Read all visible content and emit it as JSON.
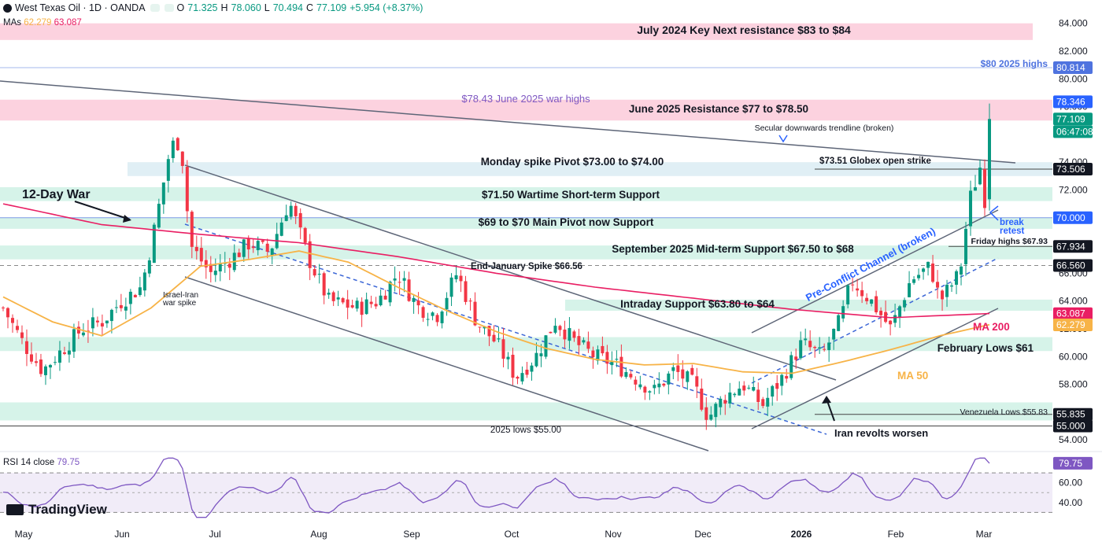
{
  "header": {
    "symbol": "West Texas Oil · 1D · OANDA",
    "o_label": "O",
    "o": "71.325",
    "h_label": "H",
    "h": "78.060",
    "l_label": "L",
    "l": "70.494",
    "c_label": "C",
    "c": "77.109",
    "change": "+5.954 (+8.37%)"
  },
  "mas": {
    "label": "MAs",
    "ma50": "62.279",
    "ma200": "63.087"
  },
  "rsi": {
    "label": "RSI 14 close",
    "value": "79.75"
  },
  "logo": "TradingView",
  "colors": {
    "up": "#089981",
    "down": "#f23645",
    "ma50": "#f7b347",
    "ma200": "#e91e63",
    "zone_green": "#c8efe1",
    "zone_pink": "#fbc3d4",
    "zone_blue": "#d6eaf2",
    "rsi_line": "#7e57c2",
    "rsi_band": "#ede7f6"
  },
  "chart_data": {
    "type": "candlestick",
    "y_axis": {
      "min": 53.5,
      "max": 85,
      "ticks": [
        "84.000",
        "82.000",
        "80.000",
        "78.000",
        "76.000",
        "74.000",
        "72.000",
        "70.000",
        "68.000",
        "66.000",
        "64.000",
        "62.000",
        "60.000",
        "58.000",
        "56.000",
        "54.000"
      ]
    },
    "x_axis": {
      "labels": [
        "May",
        "Jun",
        "Jul",
        "Aug",
        "Sep",
        "Oct",
        "Nov",
        "Dec",
        "2026",
        "Feb",
        "Mar"
      ]
    },
    "price_labels": [
      {
        "text": "80.814",
        "price": 80.81,
        "color": "#4f73df"
      },
      {
        "text": "78.346",
        "price": 78.35,
        "color": "#2962ff"
      },
      {
        "text": "77.109",
        "price": 77.11,
        "color": "#089981"
      },
      {
        "text": "06:47:08",
        "price": 76.2,
        "color": "#089981"
      },
      {
        "text": "73.506",
        "price": 73.5,
        "color": "#131722"
      },
      {
        "text": "70.000",
        "price": 70.0,
        "color": "#2962ff"
      },
      {
        "text": "67.934",
        "price": 67.93,
        "color": "#131722"
      },
      {
        "text": "66.560",
        "price": 66.56,
        "color": "#131722"
      },
      {
        "text": "63.087",
        "price": 63.09,
        "color": "#e91e63"
      },
      {
        "text": "62.279",
        "price": 62.28,
        "color": "#f7b347"
      },
      {
        "text": "55.835",
        "price": 55.84,
        "color": "#131722"
      },
      {
        "text": "55.000",
        "price": 55.0,
        "color": "#131722"
      }
    ],
    "zones": [
      {
        "name": "July 2024 Key Next resistance $83 to $84",
        "low": 82.8,
        "high": 84.0,
        "color": "pink"
      },
      {
        "name": "June 2025 Resistance $77 to $78.50",
        "low": 77.0,
        "high": 78.5,
        "color": "pink"
      },
      {
        "name": "Monday spike Pivot $73.00 to $74.00",
        "low": 73.0,
        "high": 74.0,
        "color": "blue"
      },
      {
        "name": "$71.50 Wartime Short-term Support",
        "low": 71.2,
        "high": 72.2,
        "color": "green"
      },
      {
        "name": "$69 to $70 Main Pivot now Support",
        "low": 69.2,
        "high": 70.0,
        "color": "green"
      },
      {
        "name": "September 2025 Mid-term Support $67.50 to $68",
        "low": 67.0,
        "high": 68.0,
        "color": "green"
      },
      {
        "name": "Intraday Support $63.80 to $64",
        "low": 63.3,
        "high": 64.1,
        "color": "green"
      },
      {
        "name": "February Lows $61",
        "low": 60.4,
        "high": 61.4,
        "color": "green"
      },
      {
        "name": "Venezuela Lows",
        "low": 55.4,
        "high": 56.7,
        "color": "green"
      }
    ],
    "annotations": [
      {
        "text": "July 2024 Key Next resistance $83 to $84"
      },
      {
        "text": "$80 2025 highs"
      },
      {
        "text": "$78.43 June 2025 war highs"
      },
      {
        "text": "June 2025 Resistance $77 to $78.50"
      },
      {
        "text": "Secular downwards trendline (broken)"
      },
      {
        "text": "Monday spike Pivot $73.00 to $74.00"
      },
      {
        "text": "$73.51 Globex open strike"
      },
      {
        "text": "12-Day War"
      },
      {
        "text": "$71.50 Wartime Short-term Support"
      },
      {
        "text": "$69 to $70 Main Pivot now Support"
      },
      {
        "text": "break"
      },
      {
        "text": "retest"
      },
      {
        "text": "Friday highs $67.93"
      },
      {
        "text": "September 2025 Mid-term Support $67.50 to $68"
      },
      {
        "text": "End-January Spike $66.56"
      },
      {
        "text": "Pre-Conflict Channel (broken)"
      },
      {
        "text": "Israel-Iran"
      },
      {
        "text": "war spike"
      },
      {
        "text": "Intraday Support $63.80 to $64"
      },
      {
        "text": "MA 200"
      },
      {
        "text": "February Lows $61"
      },
      {
        "text": "MA 50"
      },
      {
        "text": "Venezuela Lows $55.83"
      },
      {
        "text": "2025 lows $55.00"
      },
      {
        "text": "Iran revolts worsen"
      }
    ],
    "ma50_key": [
      [
        0,
        64.3
      ],
      [
        0.05,
        62.5
      ],
      [
        0.1,
        61.5
      ],
      [
        0.15,
        63.5
      ],
      [
        0.2,
        66.5
      ],
      [
        0.25,
        67.0
      ],
      [
        0.3,
        67.6
      ],
      [
        0.35,
        66.8
      ],
      [
        0.4,
        65.0
      ],
      [
        0.45,
        63.3
      ],
      [
        0.5,
        61.8
      ],
      [
        0.55,
        60.6
      ],
      [
        0.6,
        59.8
      ],
      [
        0.65,
        59.4
      ],
      [
        0.7,
        59.5
      ],
      [
        0.75,
        58.9
      ],
      [
        0.8,
        58.8
      ],
      [
        0.85,
        59.6
      ],
      [
        0.9,
        60.5
      ],
      [
        0.95,
        61.5
      ],
      [
        1.0,
        62.3
      ]
    ],
    "ma200_key": [
      [
        0,
        71.0
      ],
      [
        0.1,
        69.5
      ],
      [
        0.2,
        68.8
      ],
      [
        0.3,
        68.2
      ],
      [
        0.4,
        67.2
      ],
      [
        0.5,
        66.0
      ],
      [
        0.6,
        65.0
      ],
      [
        0.7,
        64.2
      ],
      [
        0.8,
        63.4
      ],
      [
        0.9,
        62.8
      ],
      [
        1.0,
        63.1
      ]
    ],
    "price_key": [
      [
        0,
        63.5
      ],
      [
        0.02,
        61
      ],
      [
        0.04,
        59
      ],
      [
        0.06,
        60.5
      ],
      [
        0.08,
        62
      ],
      [
        0.1,
        62.5
      ],
      [
        0.12,
        64
      ],
      [
        0.14,
        65
      ],
      [
        0.15,
        68
      ],
      [
        0.17,
        75.2
      ],
      [
        0.18,
        75.5
      ],
      [
        0.19,
        68
      ],
      [
        0.21,
        66
      ],
      [
        0.23,
        67
      ],
      [
        0.25,
        68.2
      ],
      [
        0.27,
        67.5
      ],
      [
        0.29,
        71.2
      ],
      [
        0.31,
        67
      ],
      [
        0.33,
        64
      ],
      [
        0.36,
        63.5
      ],
      [
        0.38,
        64
      ],
      [
        0.4,
        66
      ],
      [
        0.42,
        63.6
      ],
      [
        0.44,
        63
      ],
      [
        0.46,
        66
      ],
      [
        0.48,
        62.5
      ],
      [
        0.5,
        61
      ],
      [
        0.52,
        58.5
      ],
      [
        0.54,
        60
      ],
      [
        0.56,
        62.6
      ],
      [
        0.58,
        61
      ],
      [
        0.6,
        60
      ],
      [
        0.62,
        59.5
      ],
      [
        0.64,
        58.5
      ],
      [
        0.66,
        57.5
      ],
      [
        0.68,
        59
      ],
      [
        0.7,
        58
      ],
      [
        0.715,
        55.6
      ],
      [
        0.73,
        57
      ],
      [
        0.75,
        58
      ],
      [
        0.77,
        56.5
      ],
      [
        0.79,
        58.5
      ],
      [
        0.81,
        61
      ],
      [
        0.83,
        60
      ],
      [
        0.85,
        62.8
      ],
      [
        0.86,
        65.5
      ],
      [
        0.88,
        64
      ],
      [
        0.9,
        62
      ],
      [
        0.92,
        65.5
      ],
      [
        0.94,
        66.5
      ],
      [
        0.95,
        64
      ],
      [
        0.96,
        65
      ],
      [
        0.97,
        66
      ],
      [
        0.98,
        71.3
      ],
      [
        0.99,
        73.5
      ],
      [
        1.0,
        77.1
      ]
    ],
    "rsi": {
      "upper": 70,
      "lower": 30,
      "ticks": [
        "60.00",
        "40.00"
      ],
      "value": 79.75
    }
  }
}
